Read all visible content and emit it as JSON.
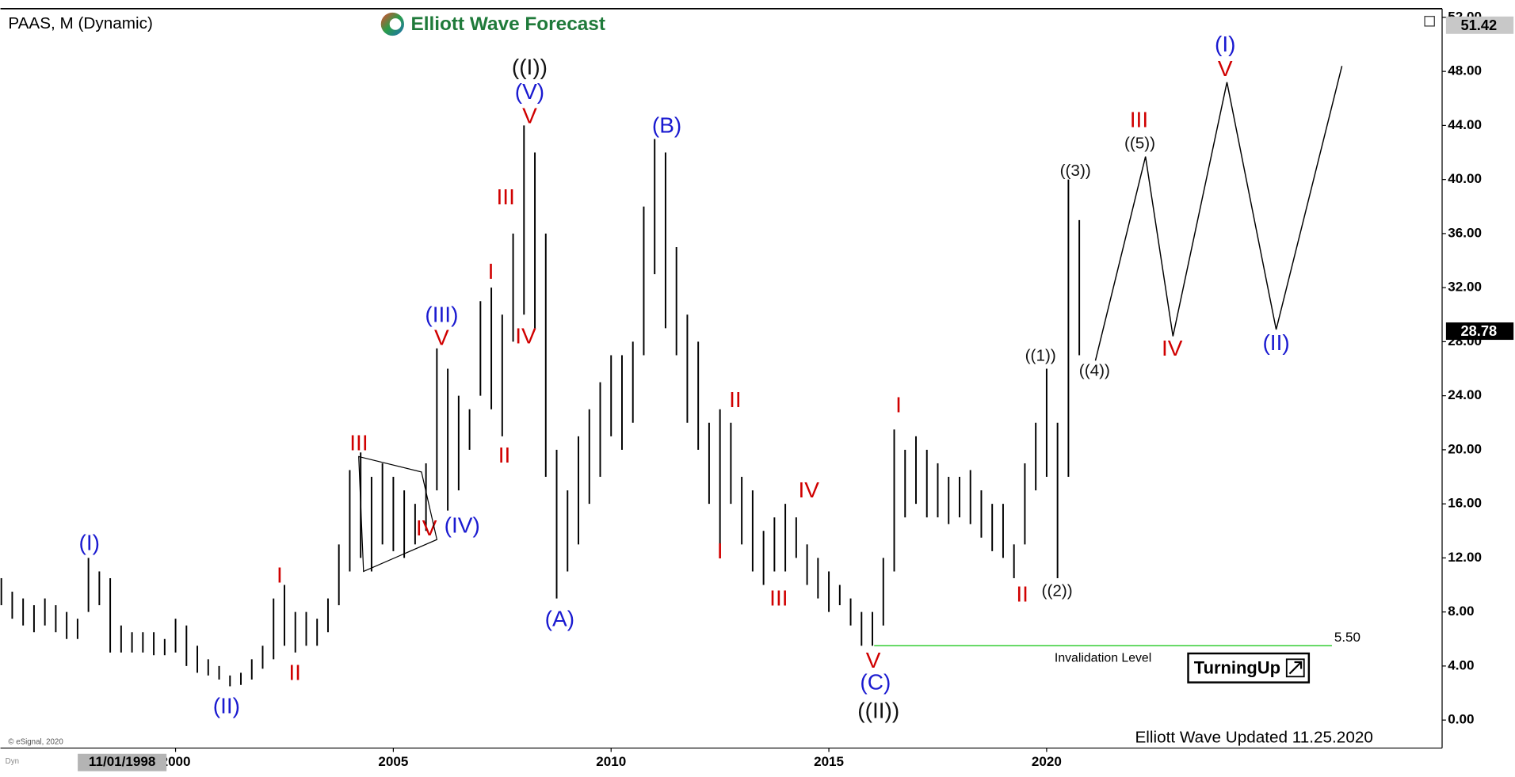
{
  "header": {
    "symbol": "PAAS, M (Dynamic)",
    "logo": "Elliott Wave Forecast"
  },
  "chart_data": {
    "type": "ohlc",
    "color": "#000000",
    "x": [
      1996.0,
      1996.25,
      1996.5,
      1996.75,
      1997.0,
      1997.25,
      1997.5,
      1997.75,
      1998.0,
      1998.25,
      1998.5,
      1998.75,
      1999.0,
      1999.25,
      1999.5,
      1999.75,
      2000.0,
      2000.25,
      2000.5,
      2000.75,
      2001.0,
      2001.25,
      2001.5,
      2001.75,
      2002.0,
      2002.25,
      2002.5,
      2002.75,
      2003.0,
      2003.25,
      2003.5,
      2003.75,
      2004.0,
      2004.25,
      2004.5,
      2004.75,
      2005.0,
      2005.25,
      2005.5,
      2005.75,
      2006.0,
      2006.25,
      2006.5,
      2006.75,
      2007.0,
      2007.25,
      2007.5,
      2007.75,
      2008.0,
      2008.25,
      2008.5,
      2008.75,
      2009.0,
      2009.25,
      2009.5,
      2009.75,
      2010.0,
      2010.25,
      2010.5,
      2010.75,
      2011.0,
      2011.25,
      2011.5,
      2011.75,
      2012.0,
      2012.25,
      2012.5,
      2012.75,
      2013.0,
      2013.25,
      2013.5,
      2013.75,
      2014.0,
      2014.25,
      2014.5,
      2014.75,
      2015.0,
      2015.25,
      2015.5,
      2015.75,
      2016.0,
      2016.25,
      2016.5,
      2016.75,
      2017.0,
      2017.25,
      2017.5,
      2017.75,
      2018.0,
      2018.25,
      2018.5,
      2018.75,
      2019.0,
      2019.25,
      2019.5,
      2019.75,
      2020.0,
      2020.25,
      2020.5,
      2020.75
    ],
    "high": [
      10.5,
      9.5,
      9,
      8.5,
      9,
      8.5,
      8,
      7.5,
      12,
      11,
      10.5,
      7,
      6.5,
      6.5,
      6.5,
      6,
      7.5,
      7,
      5.5,
      4.5,
      4,
      3.3,
      3.5,
      4.5,
      5.5,
      9,
      10,
      8,
      8,
      7.5,
      9,
      13,
      18.5,
      19.8,
      18,
      19,
      18,
      17,
      16,
      19,
      27.5,
      26,
      24,
      23,
      31,
      32,
      30,
      36,
      44,
      42,
      36,
      20,
      17,
      21,
      23,
      25,
      27,
      27,
      28,
      38,
      43,
      42,
      35,
      30,
      28,
      22,
      23,
      22,
      18,
      17,
      14,
      15,
      16,
      15,
      13,
      12,
      11,
      10,
      9,
      8,
      8,
      12,
      21.5,
      20,
      21,
      20,
      19,
      18,
      18,
      18.5,
      17,
      16,
      16,
      13,
      19,
      22,
      26,
      22,
      40,
      37
    ],
    "low": [
      8.5,
      7.5,
      7,
      6.5,
      7,
      6.5,
      6,
      6,
      8,
      8.5,
      5,
      5,
      5,
      5,
      4.8,
      4.8,
      5,
      4,
      3.5,
      3.3,
      3,
      2.5,
      2.6,
      3,
      3.8,
      4.5,
      5.5,
      5,
      5.5,
      5.5,
      6.5,
      8.5,
      11,
      12,
      11,
      13,
      12.5,
      12,
      13,
      14,
      17,
      15.5,
      17,
      20,
      24,
      23,
      21,
      28,
      30,
      29,
      18,
      9,
      11,
      13,
      16,
      18,
      21,
      20,
      22,
      27,
      33,
      29,
      27,
      22,
      20,
      16,
      13,
      16,
      13,
      11,
      10,
      11,
      11,
      12,
      10,
      9,
      8,
      8.5,
      7,
      5.5,
      5.5,
      7,
      11,
      15,
      16,
      15,
      15,
      14.5,
      15,
      14.5,
      13.5,
      12.5,
      12,
      10.5,
      13,
      17,
      18,
      10.5,
      18,
      27
    ],
    "xlim": [
      1995.98,
      2029.08
    ],
    "xticks": [
      2000,
      2005,
      2010,
      2015,
      2020
    ],
    "ylim": [
      -2.07,
      52.57
    ],
    "yticks": [
      {
        "value": 0,
        "label": "0.00"
      },
      {
        "value": 4,
        "label": "4.00"
      },
      {
        "value": 8,
        "label": "8.00"
      },
      {
        "value": 12,
        "label": "12.00"
      },
      {
        "value": 16,
        "label": "16.00"
      },
      {
        "value": 20,
        "label": "20.00"
      },
      {
        "value": 24,
        "label": "24.00"
      },
      {
        "value": 28,
        "label": "28.00"
      },
      {
        "value": 32,
        "label": "32.00"
      },
      {
        "value": 36,
        "label": "36.00"
      },
      {
        "value": 40,
        "label": "40.00"
      },
      {
        "value": 44,
        "label": "44.00"
      },
      {
        "value": 48,
        "label": "48.00"
      },
      {
        "value": 52,
        "label": "52.00"
      }
    ],
    "price_markers": [
      {
        "value": 51.42,
        "color": "#c8c8c8",
        "text_color": "#000000"
      },
      {
        "value": 28.78,
        "color": "#000000",
        "text_color": "#ffffff"
      }
    ],
    "projection": {
      "x": [
        2021.12,
        2022.27,
        2022.9,
        2024.14,
        2025.27,
        2026.78
      ],
      "y": [
        26.6,
        41.7,
        28.4,
        47.2,
        28.9,
        48.4
      ],
      "color": "#000000"
    },
    "invalidation": {
      "value": 5.5,
      "label": "5.50",
      "text": "Invalidation Level",
      "x": [
        2016.04,
        2026.55
      ],
      "color": "#33cc33"
    },
    "annotations": [
      {
        "text": "(I)",
        "x": 1998.02,
        "y": 13.0,
        "color": "#1a1ad0"
      },
      {
        "text": "(II)",
        "x": 2001.17,
        "y": 0.93,
        "color": "#1a1ad0"
      },
      {
        "text": "I",
        "x": 2002.39,
        "y": 10.6,
        "color": "#d00000"
      },
      {
        "text": "II",
        "x": 2002.74,
        "y": 3.4,
        "color": "#d00000"
      },
      {
        "text": "III",
        "x": 2004.21,
        "y": 20.4,
        "color": "#d00000"
      },
      {
        "text": "IV",
        "x": 2005.76,
        "y": 14.1,
        "color": "#d00000"
      },
      {
        "text": "(IV)",
        "x": 2006.58,
        "y": 14.3,
        "color": "#1a1ad0"
      },
      {
        "text": "(III)",
        "x": 2006.11,
        "y": 29.9,
        "color": "#1a1ad0"
      },
      {
        "text": "V",
        "x": 2006.11,
        "y": 28.2,
        "color": "#d00000"
      },
      {
        "text": "I",
        "x": 2007.24,
        "y": 33.1,
        "color": "#d00000"
      },
      {
        "text": "II",
        "x": 2007.55,
        "y": 19.5,
        "color": "#d00000"
      },
      {
        "text": "III",
        "x": 2007.58,
        "y": 38.6,
        "color": "#d00000"
      },
      {
        "text": "IV",
        "x": 2008.04,
        "y": 28.3,
        "color": "#d00000"
      },
      {
        "text": "V",
        "x": 2008.13,
        "y": 44.6,
        "color": "#d00000"
      },
      {
        "text": "(V)",
        "x": 2008.13,
        "y": 46.4,
        "color": "#1a1ad0"
      },
      {
        "text": "((I))",
        "x": 2008.13,
        "y": 48.2,
        "color": "#111111"
      },
      {
        "text": "(A)",
        "x": 2008.82,
        "y": 7.4,
        "color": "#1a1ad0"
      },
      {
        "text": "(B)",
        "x": 2011.28,
        "y": 43.9,
        "color": "#1a1ad0"
      },
      {
        "text": "I",
        "x": 2012.5,
        "y": 12.4,
        "color": "#d00000"
      },
      {
        "text": "II",
        "x": 2012.85,
        "y": 23.6,
        "color": "#d00000"
      },
      {
        "text": "III",
        "x": 2013.85,
        "y": 8.9,
        "color": "#d00000"
      },
      {
        "text": "IV",
        "x": 2014.54,
        "y": 16.9,
        "color": "#d00000"
      },
      {
        "text": "V",
        "x": 2016.02,
        "y": 4.3,
        "color": "#d00000"
      },
      {
        "text": "(C)",
        "x": 2016.07,
        "y": 2.7,
        "color": "#1a1ad0"
      },
      {
        "text": "((II))",
        "x": 2016.14,
        "y": 0.6,
        "color": "#111111"
      },
      {
        "text": "I",
        "x": 2016.6,
        "y": 23.2,
        "color": "#d00000"
      },
      {
        "text": "II",
        "x": 2019.44,
        "y": 9.2,
        "color": "#d00000"
      },
      {
        "text": "((1))",
        "x": 2019.86,
        "y": 26.9,
        "color": "#111111"
      },
      {
        "text": "((2))",
        "x": 2020.24,
        "y": 9.5,
        "color": "#111111"
      },
      {
        "text": "((3))",
        "x": 2020.66,
        "y": 40.6,
        "color": "#111111"
      },
      {
        "text": "((4))",
        "x": 2021.1,
        "y": 25.8,
        "color": "#111111"
      },
      {
        "text": "III",
        "x": 2022.12,
        "y": 44.3,
        "color": "#d00000"
      },
      {
        "text": "((5))",
        "x": 2022.14,
        "y": 42.6,
        "color": "#111111"
      },
      {
        "text": "IV",
        "x": 2022.88,
        "y": 27.4,
        "color": "#d00000"
      },
      {
        "text": "(I)",
        "x": 2024.1,
        "y": 49.9,
        "color": "#1a1ad0"
      },
      {
        "text": "V",
        "x": 2024.1,
        "y": 48.1,
        "color": "#d00000"
      },
      {
        "text": "(II)",
        "x": 2025.27,
        "y": 27.8,
        "color": "#1a1ad0"
      }
    ]
  },
  "footer": {
    "updated": "Elliott Wave Updated 11.25.2020",
    "copyright": "© eSignal, 2020",
    "cursor_date": "11/01/1998",
    "mode": "Dyn",
    "badge": "TurningUp"
  }
}
